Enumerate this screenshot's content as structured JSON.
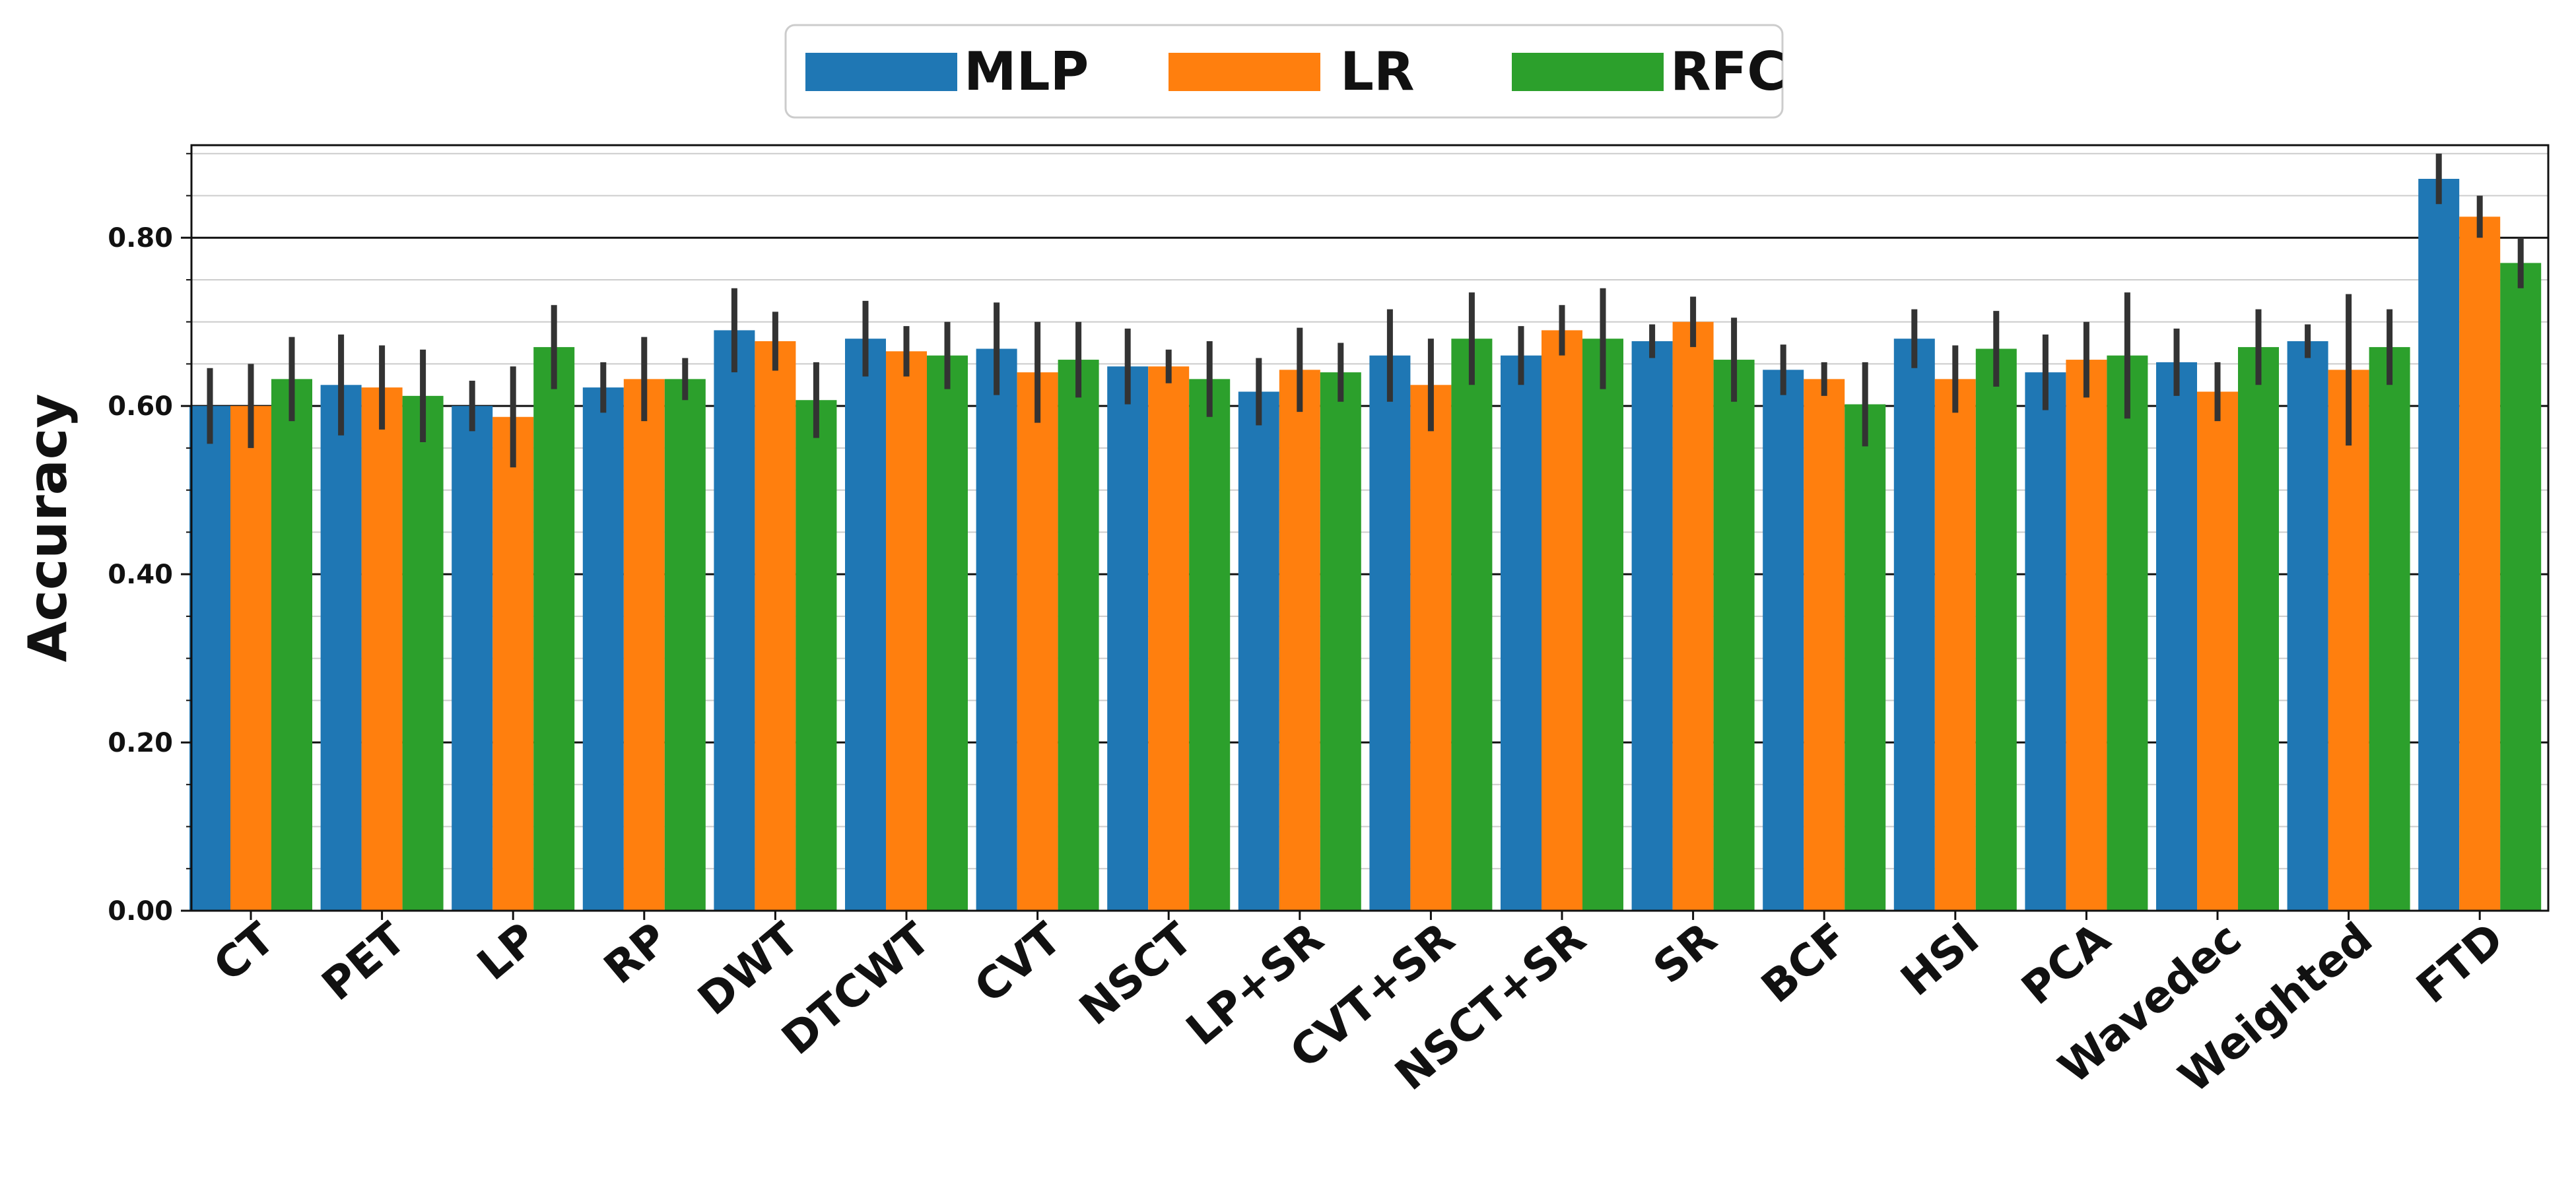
{
  "chart_data": {
    "type": "bar",
    "title": "",
    "xlabel": "",
    "ylabel": "Accuracy",
    "ylim": [
      0,
      0.91
    ],
    "yticks": [
      "0.00",
      "0.20",
      "0.40",
      "0.60",
      "0.80"
    ],
    "ytick_values": [
      0,
      0.2,
      0.4,
      0.6,
      0.8
    ],
    "grid": true,
    "legend_position": "top-center",
    "categories": [
      "CT",
      "PET",
      "LP",
      "RP",
      "DWT",
      "DTCWT",
      "CVT",
      "NSCT",
      "LP+SR",
      "CVT+SR",
      "NSCT+SR",
      "SR",
      "BCF",
      "HSI",
      "PCA",
      "Wavedec",
      "Weighted",
      "FTD"
    ],
    "series": [
      {
        "name": "MLP",
        "color": "#1f77b4",
        "values": [
          0.6,
          0.625,
          0.6,
          0.622,
          0.69,
          0.68,
          0.668,
          0.647,
          0.617,
          0.66,
          0.66,
          0.677,
          0.643,
          0.68,
          0.64,
          0.652,
          0.677,
          0.87
        ],
        "errors": [
          0.045,
          0.06,
          0.03,
          0.03,
          0.05,
          0.045,
          0.055,
          0.045,
          0.04,
          0.055,
          0.035,
          0.02,
          0.03,
          0.035,
          0.045,
          0.04,
          0.02,
          0.03
        ]
      },
      {
        "name": "LR",
        "color": "#ff7f0e",
        "values": [
          0.6,
          0.622,
          0.587,
          0.632,
          0.677,
          0.665,
          0.64,
          0.647,
          0.643,
          0.625,
          0.69,
          0.7,
          0.632,
          0.632,
          0.655,
          0.617,
          0.643,
          0.825
        ],
        "errors": [
          0.05,
          0.05,
          0.06,
          0.05,
          0.035,
          0.03,
          0.06,
          0.02,
          0.05,
          0.055,
          0.03,
          0.03,
          0.02,
          0.04,
          0.045,
          0.035,
          0.09,
          0.025
        ]
      },
      {
        "name": "RFC",
        "color": "#2ca02c",
        "values": [
          0.632,
          0.612,
          0.67,
          0.632,
          0.607,
          0.66,
          0.655,
          0.632,
          0.64,
          0.68,
          0.68,
          0.655,
          0.602,
          0.668,
          0.66,
          0.67,
          0.67,
          0.77
        ],
        "errors": [
          0.05,
          0.055,
          0.05,
          0.025,
          0.045,
          0.04,
          0.045,
          0.045,
          0.035,
          0.055,
          0.06,
          0.05,
          0.05,
          0.045,
          0.075,
          0.045,
          0.045,
          0.03
        ]
      }
    ]
  }
}
